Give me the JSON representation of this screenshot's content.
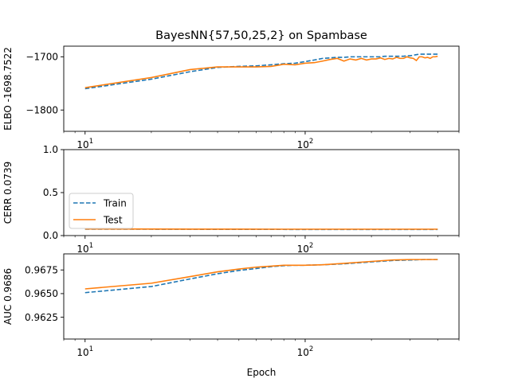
{
  "chart_data": [
    {
      "type": "line",
      "title": "BayesNN{57,50,25,2} on Spambase",
      "xlabel": "",
      "ylabel": "ELBO -1698.7522",
      "xscale": "log",
      "xlim": [
        8,
        500
      ],
      "ylim": [
        -1840,
        -1680
      ],
      "xticks": [
        {
          "value": 10,
          "base": "10",
          "exp": "1"
        },
        {
          "value": 100,
          "base": "10",
          "exp": "2"
        }
      ],
      "yticks": [
        {
          "value": -1700,
          "label": "−1700"
        },
        {
          "value": -1800,
          "label": "−1800"
        }
      ],
      "legend": null,
      "series": [
        {
          "name": "Train",
          "color": "#1f77b4",
          "style": "dashed",
          "x": [
            10,
            20,
            30,
            40,
            50,
            60,
            70,
            80,
            90,
            100,
            110,
            120,
            130,
            140,
            150,
            160,
            170,
            180,
            190,
            200,
            210,
            220,
            230,
            240,
            250,
            260,
            270,
            280,
            290,
            300,
            310,
            320,
            330,
            340,
            350,
            360,
            370,
            380,
            390,
            400
          ],
          "values": [
            -1760,
            -1742,
            -1728,
            -1720,
            -1718,
            -1717,
            -1715,
            -1713,
            -1712,
            -1709,
            -1706,
            -1703,
            -1702,
            -1701,
            -1701,
            -1700,
            -1700,
            -1700,
            -1700,
            -1700,
            -1700,
            -1700,
            -1699,
            -1699,
            -1699,
            -1699,
            -1699,
            -1699,
            -1698,
            -1698,
            -1697,
            -1696,
            -1695,
            -1695,
            -1695,
            -1695,
            -1695,
            -1695,
            -1695,
            -1695
          ]
        },
        {
          "name": "Test",
          "color": "#ff7f0e",
          "style": "solid",
          "x": [
            10,
            20,
            30,
            40,
            50,
            60,
            70,
            75,
            80,
            90,
            100,
            110,
            120,
            130,
            140,
            150,
            160,
            170,
            180,
            190,
            200,
            210,
            220,
            230,
            240,
            250,
            260,
            270,
            280,
            290,
            300,
            310,
            320,
            330,
            340,
            350,
            360,
            370,
            380,
            390,
            400
          ],
          "values": [
            -1758,
            -1739,
            -1724,
            -1719,
            -1719,
            -1719,
            -1718,
            -1716,
            -1714,
            -1715,
            -1712,
            -1711,
            -1708,
            -1705,
            -1703,
            -1708,
            -1704,
            -1706,
            -1703,
            -1706,
            -1704,
            -1704,
            -1702,
            -1705,
            -1703,
            -1704,
            -1701,
            -1703,
            -1703,
            -1700,
            -1702,
            -1703,
            -1707,
            -1700,
            -1700,
            -1702,
            -1701,
            -1703,
            -1700,
            -1700,
            -1699
          ]
        }
      ]
    },
    {
      "type": "line",
      "title": "",
      "xlabel": "",
      "ylabel": "CERR 0.0739",
      "xscale": "log",
      "xlim": [
        8,
        500
      ],
      "ylim": [
        0,
        1
      ],
      "xticks": [
        {
          "value": 10,
          "base": "10",
          "exp": "1"
        },
        {
          "value": 100,
          "base": "10",
          "exp": "2"
        }
      ],
      "yticks": [
        {
          "value": 0,
          "label": "0.0"
        },
        {
          "value": 0.5,
          "label": "0.5"
        },
        {
          "value": 1,
          "label": "1.0"
        }
      ],
      "legend": {
        "placement": "center-left",
        "entries": [
          {
            "label": "Train",
            "color": "#1f77b4",
            "style": "dashed"
          },
          {
            "label": "Test",
            "color": "#ff7f0e",
            "style": "solid"
          }
        ]
      },
      "series": [
        {
          "name": "Train",
          "color": "#1f77b4",
          "style": "dashed",
          "x": [
            10,
            20,
            30,
            50,
            70,
            100,
            150,
            200,
            300,
            400
          ],
          "values": [
            0.075,
            0.074,
            0.073,
            0.072,
            0.072,
            0.071,
            0.071,
            0.071,
            0.071,
            0.071
          ]
        },
        {
          "name": "Test",
          "color": "#ff7f0e",
          "style": "solid",
          "x": [
            10,
            20,
            30,
            50,
            70,
            100,
            150,
            200,
            300,
            400
          ],
          "values": [
            0.077,
            0.076,
            0.075,
            0.075,
            0.074,
            0.074,
            0.074,
            0.074,
            0.074,
            0.074
          ]
        }
      ]
    },
    {
      "type": "line",
      "title": "",
      "xlabel": "Epoch",
      "ylabel": "AUC 0.9686",
      "xscale": "log",
      "xlim": [
        8,
        500
      ],
      "ylim": [
        0.9602,
        0.9692
      ],
      "xticks": [
        {
          "value": 10,
          "base": "10",
          "exp": "1"
        },
        {
          "value": 100,
          "base": "10",
          "exp": "2"
        }
      ],
      "yticks": [
        {
          "value": 0.9625,
          "label": "0.9625"
        },
        {
          "value": 0.965,
          "label": "0.9650"
        },
        {
          "value": 0.9675,
          "label": "0.9675"
        }
      ],
      "legend": null,
      "series": [
        {
          "name": "Train",
          "color": "#1f77b4",
          "style": "dashed",
          "x": [
            10,
            20,
            30,
            40,
            50,
            60,
            70,
            80,
            90,
            100,
            120,
            150,
            200,
            250,
            300,
            350,
            400
          ],
          "values": [
            0.9651,
            0.96575,
            0.96655,
            0.9671,
            0.96745,
            0.96765,
            0.96785,
            0.96795,
            0.968,
            0.968,
            0.96805,
            0.96815,
            0.96835,
            0.9685,
            0.96855,
            0.9686,
            0.9686
          ]
        },
        {
          "name": "Test",
          "color": "#ff7f0e",
          "style": "solid",
          "x": [
            10,
            20,
            30,
            40,
            50,
            60,
            70,
            80,
            90,
            100,
            120,
            150,
            200,
            250,
            300,
            350,
            400
          ],
          "values": [
            0.9655,
            0.9661,
            0.9668,
            0.9673,
            0.9676,
            0.9678,
            0.9679,
            0.968,
            0.968,
            0.968,
            0.96805,
            0.9682,
            0.9684,
            0.96855,
            0.9686,
            0.9686,
            0.9686
          ]
        }
      ]
    }
  ]
}
